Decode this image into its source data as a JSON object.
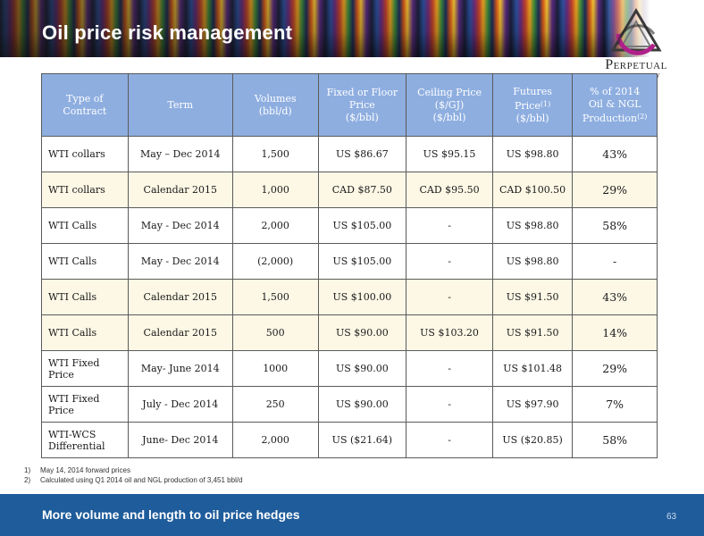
{
  "slide": {
    "title": "Oil price risk management",
    "logo_text": "Perpetual",
    "logo_subtext": "ENERGY"
  },
  "table": {
    "headers": [
      {
        "lines": [
          "Type of",
          "Contract"
        ]
      },
      {
        "lines": [
          "Term"
        ]
      },
      {
        "lines": [
          "Volumes",
          "(bbl/d)"
        ]
      },
      {
        "lines": [
          "Fixed or Floor",
          "Price",
          "($/bbl)"
        ]
      },
      {
        "lines": [
          "Ceiling Price",
          "($/GJ)",
          "($/bbl)"
        ]
      },
      {
        "lines": [
          "Futures",
          "Price",
          "($/bbl)"
        ],
        "sup": "(1)"
      },
      {
        "lines": [
          "% of 2014",
          "Oil & NGL",
          "Production"
        ],
        "sup": "(2)"
      }
    ],
    "rows": [
      [
        "WTI collars",
        "May – Dec 2014",
        "1,500",
        "US $86.67",
        "US $95.15",
        "US $98.80",
        "43%"
      ],
      [
        "WTI collars",
        "Calendar 2015",
        "1,000",
        "CAD $87.50",
        "CAD $95.50",
        "CAD $100.50",
        "29%"
      ],
      [
        "WTI Calls",
        "May - Dec 2014",
        "2,000",
        "US $105.00",
        "-",
        "US $98.80",
        "58%"
      ],
      [
        "WTI Calls",
        "May - Dec 2014",
        "(2,000)",
        "US $105.00",
        "-",
        "US $98.80",
        "-"
      ],
      [
        "WTI Calls",
        "Calendar 2015",
        "1,500",
        "US $100.00",
        "-",
        "US $91.50",
        "43%"
      ],
      [
        "WTI Calls",
        "Calendar 2015",
        "500",
        "US $90.00",
        "US $103.20",
        "US $91.50",
        "14%"
      ],
      [
        "WTI Fixed Price",
        "May- June 2014",
        "1000",
        "US $90.00",
        "-",
        "US $101.48",
        "29%"
      ],
      [
        "WTI Fixed Price",
        "July - Dec 2014",
        "250",
        "US $90.00",
        "-",
        "US $97.90",
        "7%"
      ],
      [
        "WTI-WCS\nDifferential",
        "June- Dec 2014",
        "2,000",
        "US ($21.64)",
        "-",
        "US ($20.85)",
        "58%"
      ]
    ]
  },
  "footnotes": [
    {
      "num": "1)",
      "text": "May 14, 2014 forward prices"
    },
    {
      "num": "2)",
      "text": "Calculated using Q1 2014 oil and NGL production of 3,451 bbl/d"
    }
  ],
  "footer": {
    "text": "More volume and length to oil price hedges",
    "page_number": "63"
  }
}
